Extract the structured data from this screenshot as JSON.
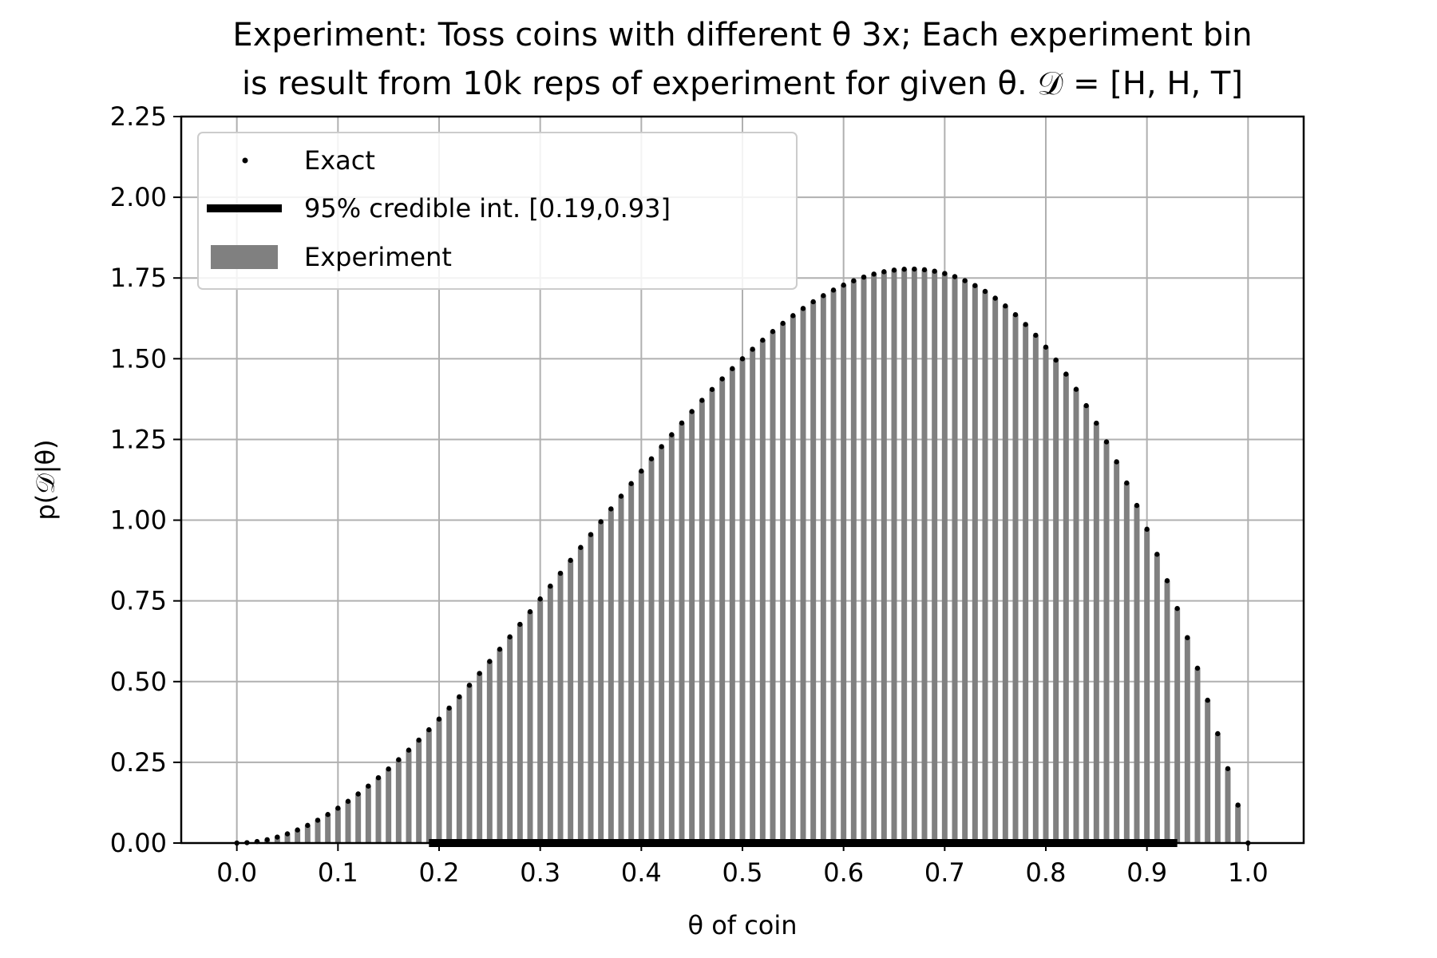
{
  "chart_data": {
    "type": "bar",
    "title": {
      "line1": "Experiment: Toss coins with different θ 3x; Each experiment bin",
      "line2": "is result from 10k reps of experiment for given θ. 𝒟 = [H, H, T]"
    },
    "xlabel": "θ of coin",
    "ylabel": "p(𝒟|θ)",
    "xlim": [
      -0.055,
      1.055
    ],
    "ylim": [
      0,
      2.25
    ],
    "xticks": [
      "0.0",
      "0.1",
      "0.2",
      "0.3",
      "0.4",
      "0.5",
      "0.6",
      "0.7",
      "0.8",
      "0.9",
      "1.0"
    ],
    "yticks": [
      "0.00",
      "0.25",
      "0.50",
      "0.75",
      "1.00",
      "1.25",
      "1.50",
      "1.75",
      "2.00",
      "2.25"
    ],
    "grid": true,
    "legend_position": "top-left",
    "legend": {
      "exact": "Exact",
      "interval": "95% credible int. [0.19,0.93]",
      "experiment": "Experiment"
    },
    "series": [
      {
        "name": "Exact",
        "style": "points",
        "color": "#000000",
        "x_range": [
          0,
          1
        ],
        "point_count": 101,
        "formula": "12*theta^2*(1-theta)"
      },
      {
        "name": "95% credible int. [0.19,0.93]",
        "style": "interval",
        "color": "#000000",
        "interval": [
          0.19,
          0.93
        ]
      },
      {
        "name": "Experiment",
        "style": "bars",
        "color": "#808080",
        "x_range": [
          0,
          1
        ],
        "bar_count": 101,
        "note_values_follow": "Exact"
      }
    ]
  }
}
